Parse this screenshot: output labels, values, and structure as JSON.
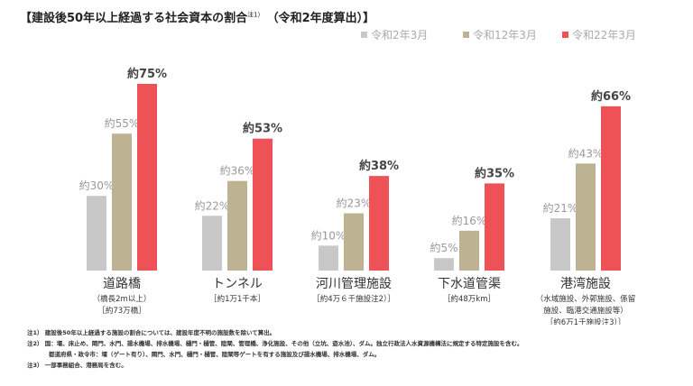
{
  "title": "【建設後50年以上経過する社会資本の割合",
  "title_note": "注1）",
  "title_suffix": "（令和2年度算出）】",
  "chart_data": {
    "type": "bar",
    "categories": [
      "道路橋",
      "トンネル",
      "河川管理施設",
      "下水道管渠",
      "港湾施設"
    ],
    "category_sublabels": [
      [
        "（橋長2m以上）",
        "［約73万橋］"
      ],
      [
        "［約1万1千本］"
      ],
      [
        "［約4万６千施設注2）］"
      ],
      [
        "［約48万km］"
      ],
      [
        "（水域施設、外郭施設、係留",
        "施設、臨港交通施設等）",
        "［約6万1千施設注3）］"
      ]
    ],
    "series": [
      {
        "name": "令和2年3月",
        "color": "#c8c8c8",
        "values": [
          30,
          22,
          10,
          5,
          21
        ]
      },
      {
        "name": "令和12年3月",
        "color": "#bdb392",
        "values": [
          55,
          36,
          23,
          16,
          43
        ]
      },
      {
        "name": "令和22年3月",
        "color": "#ee5257",
        "values": [
          75,
          53,
          38,
          35,
          66
        ]
      }
    ],
    "value_prefix": "約",
    "value_suffix": "%",
    "unit": "%",
    "ylim": [
      0,
      80
    ],
    "grid": false,
    "legend": "top-right"
  },
  "notes": [
    "注1） 建設後50年以上経過する施設の割合については、建設年度不明の施設数を除いて算出。",
    "注2） 国：堰、床止め、閘門、水門、揚水機場、排水機場、樋門・樋管、陸閘、管理橋、浄化施設、その他（立坑、遊水池）、ダム。独立行政法人水資源機構法に規定する特定施設を含む。",
    "都道府県・政令市：堰（ゲート有り）、閘門、水門、樋門・樋管、陸閘等ゲートを有する施設及び揚水機場、排水機場、ダム。",
    "注3） 一部事務組合、港務局を含む。"
  ]
}
